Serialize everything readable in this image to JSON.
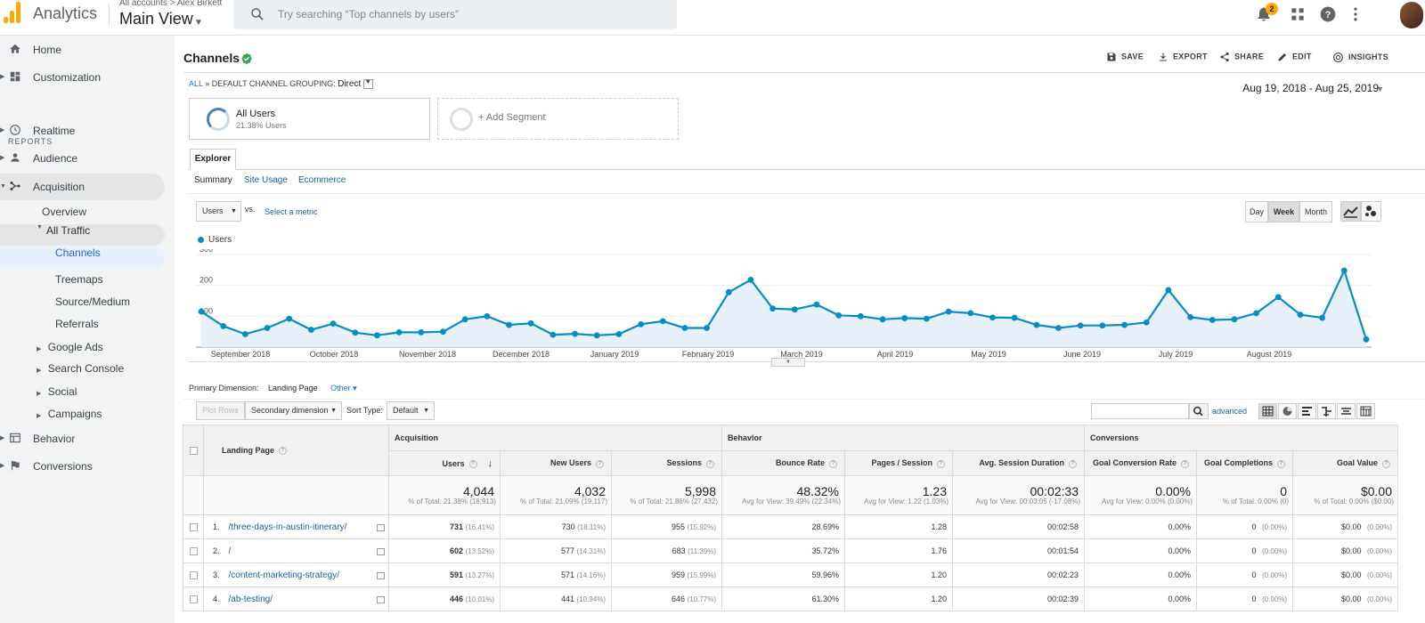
{
  "topbar": {
    "app_name": "Analytics",
    "account_path": "All accounts > Alex Birkett",
    "view_name": "Main View",
    "search_placeholder": "Try searching “Top channels by users”",
    "notification_count": "2"
  },
  "sidebar": {
    "home": "Home",
    "customization": "Customization",
    "reports_header": "REPORTS",
    "realtime": "Realtime",
    "audience": "Audience",
    "acquisition": "Acquisition",
    "overview": "Overview",
    "all_traffic": "All Traffic",
    "channels": "Channels",
    "treemaps": "Treemaps",
    "source_medium": "Source/Medium",
    "referrals": "Referrals",
    "google_ads": "Google Ads",
    "search_console": "Search Console",
    "social": "Social",
    "campaigns": "Campaigns",
    "behavior": "Behavior",
    "conversions": "Conversions"
  },
  "header": {
    "title": "Channels",
    "save": "SAVE",
    "export": "EXPORT",
    "share": "SHARE",
    "edit": "EDIT",
    "insights": "INSIGHTS",
    "crumb_all": "ALL",
    "crumb_sep": "»",
    "crumb_label": "DEFAULT CHANNEL GROUPING:",
    "crumb_value": "Direct",
    "date_range": "Aug 19, 2018 - Aug 25, 2019"
  },
  "segments": {
    "all_users": "All Users",
    "all_users_pct": "21.38% Users",
    "add_segment": "+ Add Segment"
  },
  "explorer": {
    "tab": "Explorer",
    "subtabs": [
      "Summary",
      "Site Usage",
      "Ecommerce"
    ],
    "metric": "Users",
    "vs": "vs.",
    "select_metric": "Select a metric",
    "granularity": [
      "Day",
      "Week",
      "Month"
    ],
    "active_granularity": "Week"
  },
  "chart_data": {
    "type": "line",
    "series": [
      {
        "name": "Users",
        "color": "#058dc7",
        "values": [
          115,
          68,
          42,
          62,
          92,
          56,
          76,
          47,
          38,
          48,
          48,
          50,
          90,
          100,
          72,
          77,
          40,
          43,
          38,
          42,
          74,
          84,
          62,
          62,
          178,
          218,
          125,
          122,
          138,
          103,
          100,
          90,
          94,
          92,
          115,
          110,
          96,
          95,
          72,
          62,
          70,
          70,
          72,
          80,
          185,
          97,
          88,
          90,
          110,
          162,
          105,
          95,
          248,
          25
        ]
      }
    ],
    "x_month_labels": [
      "September 2018",
      "October 2018",
      "November 2018",
      "December 2018",
      "January 2019",
      "February 2019",
      "March 2019",
      "April 2019",
      "May 2019",
      "June 2019",
      "July 2019",
      "August 2019"
    ],
    "y_ticks": [
      100,
      200,
      300
    ],
    "ylim": [
      0,
      300
    ],
    "grid": true
  },
  "table_controls": {
    "primary_dimension_label": "Primary Dimension:",
    "primary_dimension": "Landing Page",
    "other": "Other",
    "plot_rows": "Plot Rows",
    "secondary_dimension": "Secondary dimension",
    "sort_type_label": "Sort Type:",
    "sort_type": "Default",
    "advanced": "advanced"
  },
  "table": {
    "dimension_header": "Landing Page",
    "groups": [
      "Acquisition",
      "Behavior",
      "Conversions"
    ],
    "columns": [
      "Users",
      "New Users",
      "Sessions",
      "Bounce Rate",
      "Pages / Session",
      "Avg. Session Duration",
      "Goal Conversion Rate",
      "Goal Completions",
      "Goal Value"
    ],
    "totals": [
      {
        "value": "4,044",
        "sub": "% of Total: 21.38% (18,913)"
      },
      {
        "value": "4,032",
        "sub": "% of Total: 21.09% (19,117)"
      },
      {
        "value": "5,998",
        "sub": "% of Total: 21.86% (27,432)"
      },
      {
        "value": "48.32%",
        "sub": "Avg for View: 39.49% (22.34%)"
      },
      {
        "value": "1.23",
        "sub": "Avg for View: 1.22 (1.03%)"
      },
      {
        "value": "00:02:33",
        "sub": "Avg for View: 00:03:05 (-17.08%)"
      },
      {
        "value": "0.00%",
        "sub": "Avg for View: 0.00% (0.00%)"
      },
      {
        "value": "0",
        "sub": "% of Total: 0.00% (0)"
      },
      {
        "value": "$0.00",
        "sub": "% of Total: 0.00% ($0.00)"
      }
    ],
    "rows": [
      {
        "idx": "1.",
        "page": "/three-days-in-austin-itinerary/",
        "users": "731",
        "users_pct": "(16.41%)",
        "new_users": "730",
        "new_users_pct": "(18.11%)",
        "sessions": "955",
        "sessions_pct": "(15.92%)",
        "bounce": "28.69%",
        "pps": "1.28",
        "duration": "00:02:58",
        "gcr": "0.00%",
        "gc": "0",
        "gc_pct": "(0.00%)",
        "gv": "$0.00",
        "gv_pct": "(0.00%)"
      },
      {
        "idx": "2.",
        "page": "/",
        "users": "602",
        "users_pct": "(13.52%)",
        "new_users": "577",
        "new_users_pct": "(14.31%)",
        "sessions": "683",
        "sessions_pct": "(11.39%)",
        "bounce": "35.72%",
        "pps": "1.76",
        "duration": "00:01:54",
        "gcr": "0.00%",
        "gc": "0",
        "gc_pct": "(0.00%)",
        "gv": "$0.00",
        "gv_pct": "(0.00%)"
      },
      {
        "idx": "3.",
        "page": "/content-marketing-strategy/",
        "users": "591",
        "users_pct": "(13.27%)",
        "new_users": "571",
        "new_users_pct": "(14.16%)",
        "sessions": "959",
        "sessions_pct": "(15.99%)",
        "bounce": "59.96%",
        "pps": "1.20",
        "duration": "00:02:23",
        "gcr": "0.00%",
        "gc": "0",
        "gc_pct": "(0.00%)",
        "gv": "$0.00",
        "gv_pct": "(0.00%)"
      },
      {
        "idx": "4.",
        "page": "/ab-testing/",
        "users": "446",
        "users_pct": "(10.01%)",
        "new_users": "441",
        "new_users_pct": "(10.94%)",
        "sessions": "646",
        "sessions_pct": "(10.77%)",
        "bounce": "61.30%",
        "pps": "1.20",
        "duration": "00:02:39",
        "gcr": "0.00%",
        "gc": "0",
        "gc_pct": "(0.00%)",
        "gv": "$0.00",
        "gv_pct": "(0.00%)"
      }
    ]
  }
}
